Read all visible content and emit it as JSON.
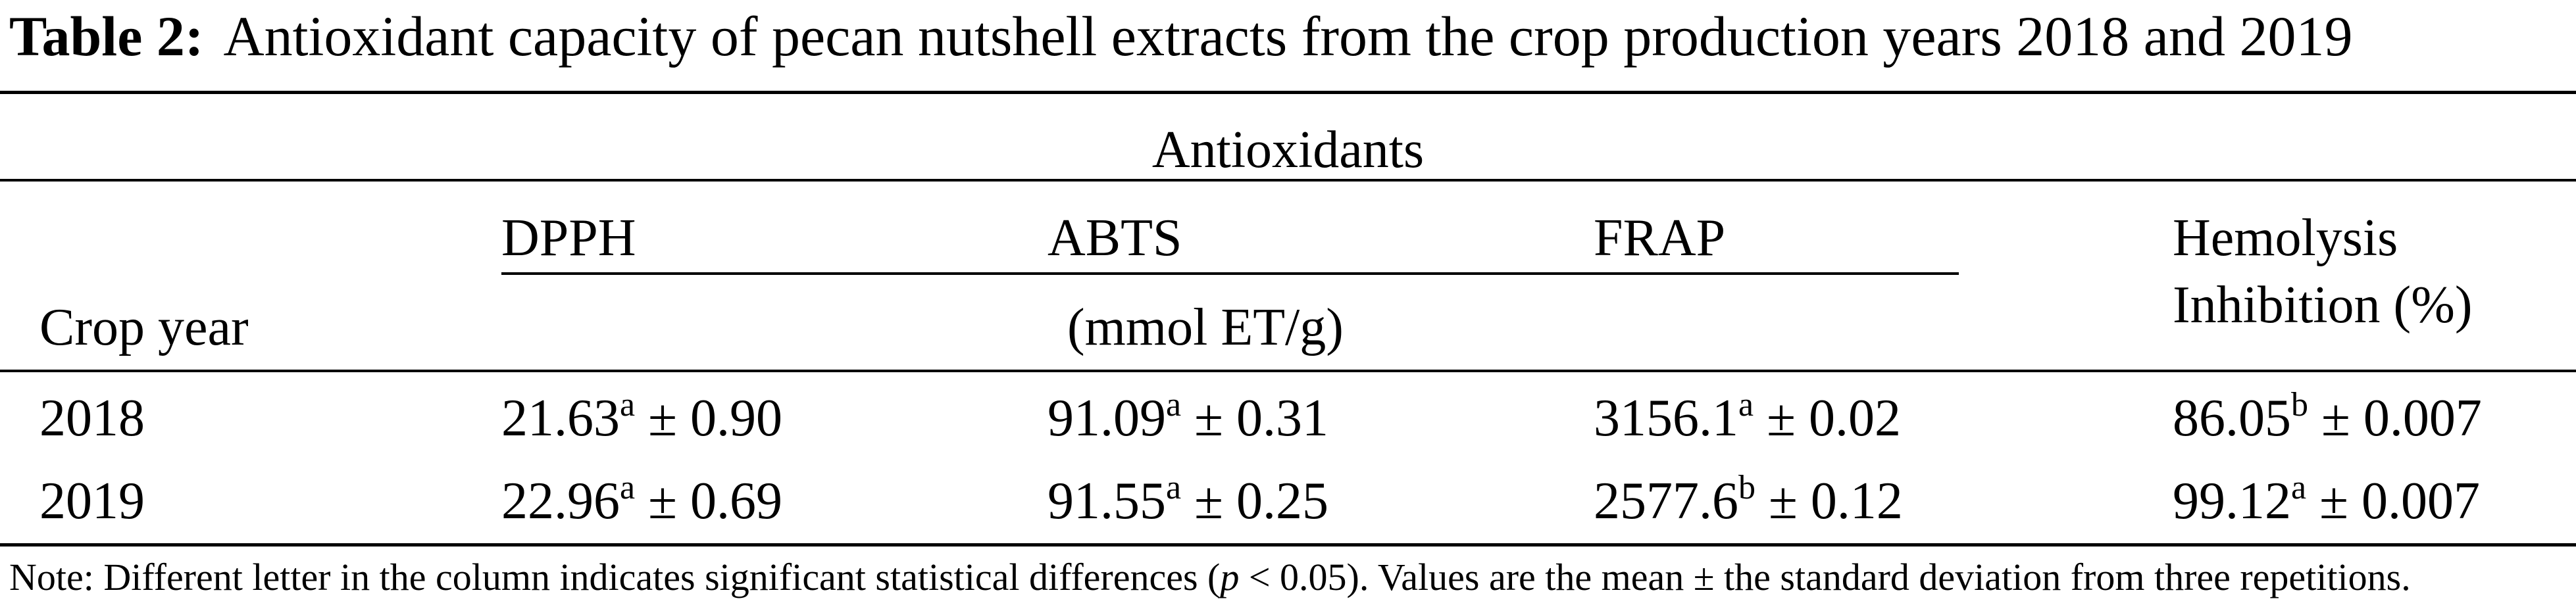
{
  "caption": {
    "label": "Table 2:",
    "text": "Antioxidant capacity of pecan nutshell extracts from the crop production years 2018 and 2019"
  },
  "header": {
    "group_label": "Antioxidants",
    "crop_year": "Crop year",
    "dpph": "DPPH",
    "abts": "ABTS",
    "frap": "FRAP",
    "unit": "(mmol ET/g)",
    "hemolysis_line1": "Hemolysis",
    "hemolysis_line2": "Inhibition (%)"
  },
  "rows": [
    {
      "year": "2018",
      "dpph": {
        "value": "21.63",
        "letter": "a",
        "sd": " ± 0.90"
      },
      "abts": {
        "value": "91.09",
        "letter": "a",
        "sd": " ± 0.31"
      },
      "frap": {
        "value": "3156.1",
        "letter": "a",
        "sd": " ± 0.02"
      },
      "hemolysis": {
        "value": "86.05",
        "letter": "b",
        "sd": " ± 0.007"
      }
    },
    {
      "year": "2019",
      "dpph": {
        "value": "22.96",
        "letter": "a",
        "sd": " ± 0.69"
      },
      "abts": {
        "value": "91.55",
        "letter": "a",
        "sd": " ± 0.25"
      },
      "frap": {
        "value": "2577.6",
        "letter": "b",
        "sd": " ± 0.12"
      },
      "hemolysis": {
        "value": "99.12",
        "letter": "a",
        "sd": " ± 0.007"
      }
    }
  ],
  "note": {
    "before": "Note: Different letter in the column indicates significant statistical differences (",
    "p": "p",
    "after": " < 0.05). Values are the mean ± the standard deviation from three repetitions."
  }
}
